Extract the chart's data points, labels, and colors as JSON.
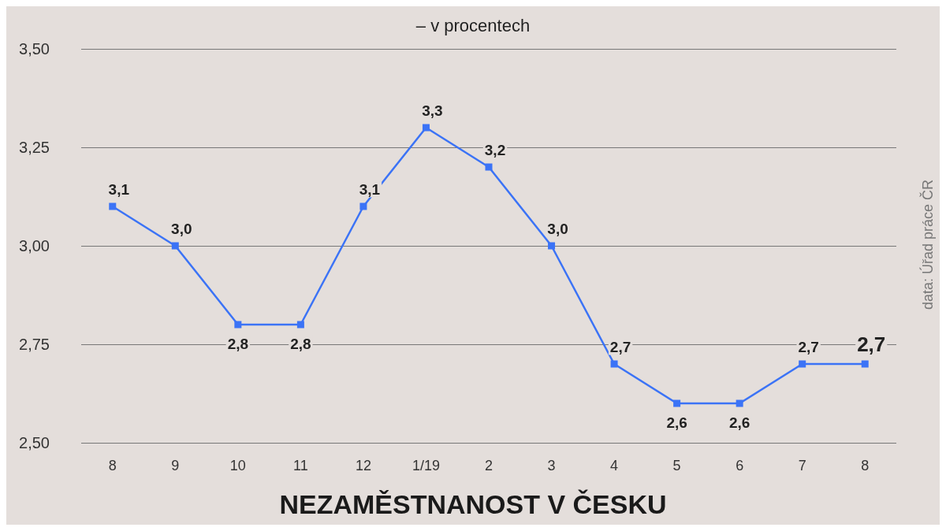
{
  "chart_data": {
    "type": "line",
    "title": "NEZAMĚSTNANOST V ČESKU",
    "subtitle": "– v procentech",
    "annotations": [
      "data: Úřad práce ČR"
    ],
    "categories": [
      "8",
      "9",
      "10",
      "11",
      "12",
      "1/19",
      "2",
      "3",
      "4",
      "5",
      "6",
      "7",
      "8"
    ],
    "series": [
      {
        "color": "#3b73f6",
        "values": [
          3.1,
          3.0,
          2.8,
          2.8,
          3.1,
          3.3,
          3.2,
          3.0,
          2.7,
          2.6,
          2.6,
          2.7,
          2.7
        ],
        "value_labels": [
          "3,1",
          "3,0",
          "2,8",
          "2,8",
          "3,1",
          "3,3",
          "3,2",
          "3,0",
          "2,7",
          "2,6",
          "2,6",
          "2,7",
          "2,7"
        ]
      }
    ],
    "ylim": [
      2.5,
      3.5
    ],
    "yticks": [
      {
        "value": 2.5,
        "label": "2,50"
      },
      {
        "value": 2.75,
        "label": "2,75"
      },
      {
        "value": 3.0,
        "label": "3,00"
      },
      {
        "value": 3.25,
        "label": "3,25"
      },
      {
        "value": 3.5,
        "label": "3,50"
      }
    ],
    "grid": "y",
    "marker": "square",
    "line_style": "solid"
  }
}
